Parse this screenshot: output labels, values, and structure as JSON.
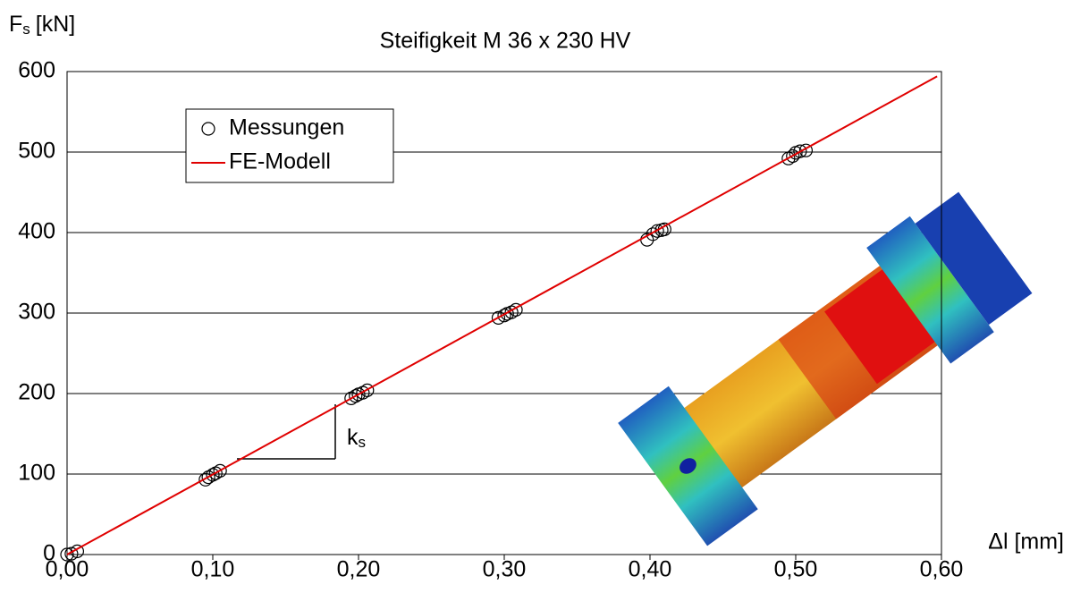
{
  "chart_data": {
    "type": "scatter",
    "title": "Steifigkeit M 36 x 230 HV",
    "y_label": {
      "base": "F",
      "sub": "s",
      "unit": "[kN]"
    },
    "x_label": "Δl [mm]",
    "annotation": {
      "base": "k",
      "sub": "s"
    },
    "xlim": [
      0,
      0.6
    ],
    "ylim": [
      0,
      600
    ],
    "xticks": [
      {
        "value": 0,
        "label": "0,00"
      },
      {
        "value": 0.1,
        "label": "0,10"
      },
      {
        "value": 0.2,
        "label": "0,20"
      },
      {
        "value": 0.3,
        "label": "0,30"
      },
      {
        "value": 0.4,
        "label": "0,40"
      },
      {
        "value": 0.5,
        "label": "0,50"
      },
      {
        "value": 0.6,
        "label": "0,60"
      }
    ],
    "yticks": [
      0,
      100,
      200,
      300,
      400,
      500,
      600
    ],
    "grid": true,
    "legend": "upper left",
    "series": [
      {
        "name": "Messungen",
        "type": "scatter",
        "color": "#000000",
        "x": [
          0,
          0.003,
          0.007,
          0.095,
          0.097,
          0.1,
          0.102,
          0.105,
          0.195,
          0.198,
          0.2,
          0.203,
          0.206,
          0.296,
          0.3,
          0.302,
          0.305,
          0.308,
          0.398,
          0.402,
          0.405,
          0.408,
          0.41,
          0.495,
          0.498,
          0.5,
          0.503,
          0.507
        ],
        "values": [
          0,
          1,
          4,
          93,
          96,
          99,
          101,
          104,
          194,
          197,
          199,
          201,
          204,
          294,
          297,
          299,
          301,
          304,
          391,
          398,
          402,
          403,
          404,
          492,
          495,
          499,
          501,
          502
        ]
      },
      {
        "name": "FE-Modell",
        "type": "line",
        "color": "#e00000",
        "x": [
          0,
          0.597
        ],
        "values": [
          0,
          594
        ]
      }
    ]
  }
}
